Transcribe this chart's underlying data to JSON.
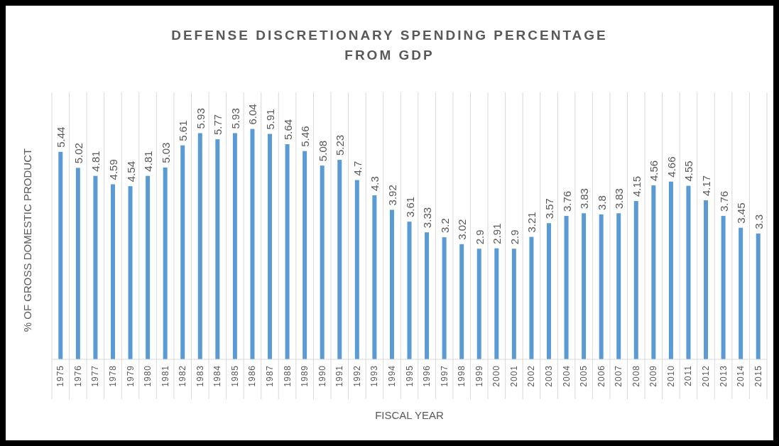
{
  "chart_data": {
    "type": "bar",
    "title": "DEFENSE DISCRETIONARY SPENDING PERCENTAGE\nFROM GDP",
    "xlabel": "FISCAL YEAR",
    "ylabel": "% OF GROSS DOMESTIC PRODUCT",
    "categories": [
      "1975",
      "1976",
      "1977",
      "1978",
      "1979",
      "1980",
      "1981",
      "1982",
      "1983",
      "1984",
      "1985",
      "1986",
      "1987",
      "1988",
      "1989",
      "1990",
      "1991",
      "1992",
      "1993",
      "1994",
      "1995",
      "1996",
      "1997",
      "1998",
      "1999",
      "2000",
      "2001",
      "2002",
      "2003",
      "2004",
      "2005",
      "2006",
      "2007",
      "2008",
      "2009",
      "2010",
      "2011",
      "2012",
      "2013",
      "2014",
      "2015"
    ],
    "values": [
      5.44,
      5.02,
      4.81,
      4.59,
      4.54,
      4.81,
      5.03,
      5.61,
      5.93,
      5.77,
      5.93,
      6.04,
      5.91,
      5.64,
      5.46,
      5.08,
      5.23,
      4.7,
      4.3,
      3.92,
      3.61,
      3.33,
      3.2,
      3.02,
      2.9,
      2.91,
      2.9,
      3.21,
      3.57,
      3.76,
      3.83,
      3.8,
      3.83,
      4.15,
      4.56,
      4.66,
      4.55,
      4.17,
      3.76,
      3.45,
      3.3
    ],
    "color": "#5b9bd5",
    "ylim": [
      0,
      7
    ],
    "tick_labels": "x",
    "data_labels": true,
    "grid": "x"
  }
}
